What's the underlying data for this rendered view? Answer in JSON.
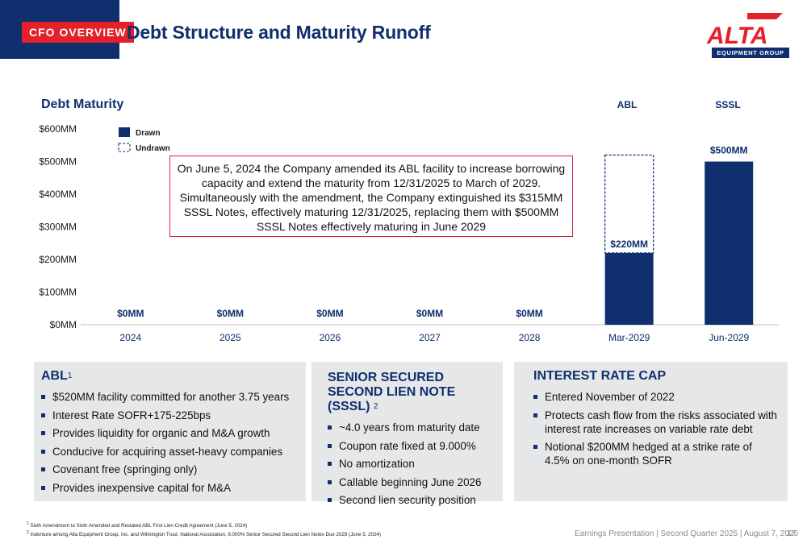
{
  "header": {
    "badge": "CFO OVERVIEW",
    "title": "Debt Structure and Maturity Runoff"
  },
  "logo": {
    "wordmark": "ALTA",
    "sub": "EQUIPMENT GROUP",
    "colors": {
      "primary": "#e4202a",
      "secondary": "#0f2f6e"
    }
  },
  "colors": {
    "navy": "#0f2f6e",
    "red": "#e4202a",
    "panel_bg": "#e6e7e8"
  },
  "chart_data": {
    "type": "bar",
    "title": "Debt Maturity",
    "categories": [
      "2024",
      "2025",
      "2026",
      "2027",
      "2028",
      "Mar-2029",
      "Jun-2029"
    ],
    "column_headers": [
      {
        "category": "Mar-2029",
        "label": "ABL"
      },
      {
        "category": "Jun-2029",
        "label": "SSSL"
      }
    ],
    "series": [
      {
        "name": "Drawn",
        "values": [
          0,
          0,
          0,
          0,
          0,
          220,
          500
        ],
        "style": "solid"
      },
      {
        "name": "Undrawn",
        "values": [
          0,
          0,
          0,
          0,
          0,
          300,
          0
        ],
        "style": "dashed"
      }
    ],
    "data_labels": [
      "$0MM",
      "$0MM",
      "$0MM",
      "$0MM",
      "$0MM",
      "$220MM",
      "$500MM"
    ],
    "ylim": [
      0,
      600
    ],
    "yticks": [
      {
        "value": 0,
        "label": "$0MM"
      },
      {
        "value": 100,
        "label": "$100MM"
      },
      {
        "value": 200,
        "label": "$200MM"
      },
      {
        "value": 300,
        "label": "$300MM"
      },
      {
        "value": 400,
        "label": "$400MM"
      },
      {
        "value": 500,
        "label": "$500MM"
      },
      {
        "value": 600,
        "label": "$600MM"
      }
    ],
    "legend_position": "top-left",
    "grid": false
  },
  "callout": "On June 5, 2024 the Company amended its ABL facility to increase borrowing capacity and extend the maturity from 12/31/2025 to March of 2029. Simultaneously with the amendment, the Company extinguished its $315MM SSSL Notes, effectively maturing 12/31/2025, replacing them with $500MM SSSL Notes effectively maturing in June 2029",
  "panels": {
    "abl": {
      "title": "ABL",
      "sup": "1",
      "bullets": [
        "$520MM facility committed for another 3.75 years",
        "Interest Rate SOFR+175-225bps",
        "Provides liquidity for organic and M&A growth",
        "Conducive for acquiring asset-heavy companies",
        "Covenant free (springing only)",
        "Provides inexpensive capital for M&A"
      ]
    },
    "sssl": {
      "title": "SENIOR SECURED SECOND LIEN NOTE (SSSL)",
      "sup": "2",
      "bullets": [
        "~4.0 years from maturity date",
        "Coupon rate fixed at 9.000%",
        "No amortization",
        "Callable beginning June 2026",
        "Second lien security position"
      ]
    },
    "cap": {
      "title": "INTEREST RATE CAP",
      "bullets": [
        "Entered November of 2022",
        "Protects cash flow from the risks associated with interest rate increases on variable rate debt",
        "Notional $200MM hedged at a strike rate of 4.5% on one-month SOFR"
      ]
    }
  },
  "footnotes": [
    {
      "num": "1",
      "text": "Sixth Amendment to Sixth Amended and Restated ABL First Lien Credit Agreement (June 5, 2024)"
    },
    {
      "num": "2",
      "text": "Indenture among Alta Equipment Group, Inc. and Wilmington Trust, National Association, 9.000% Senior Secured Second Lien Notes Due 2029 (June 5, 2024)"
    }
  ],
  "footer": {
    "text": "Earnings Presentation | Second Quarter 2025 | August 7, 2025",
    "page": "17"
  }
}
